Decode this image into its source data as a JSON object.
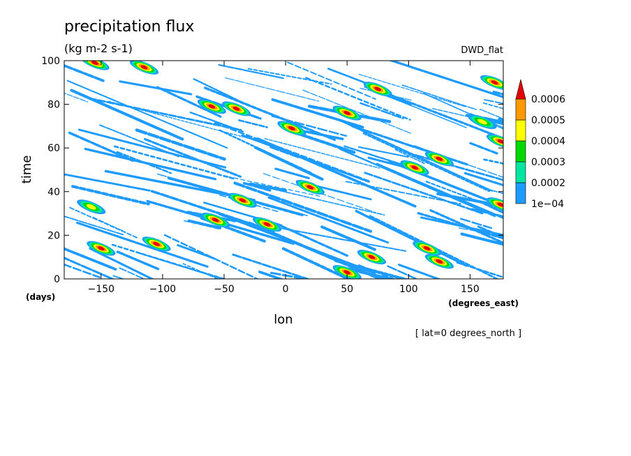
{
  "chart_data": {
    "type": "heatmap",
    "title": "precipitation flux",
    "units": "(kg m-2 s-1)",
    "dataset": "DWD_flat",
    "xlabel": "lon",
    "ylabel": "time",
    "x_units": "(degrees_east)",
    "y_units": "(days)",
    "xlim": [
      -180,
      177
    ],
    "ylim": [
      0,
      100
    ],
    "x_ticks": [
      -150,
      -100,
      -50,
      0,
      50,
      100,
      150
    ],
    "x_tick_labels": [
      "−150",
      "−100",
      "−50",
      "0",
      "50",
      "100",
      "150"
    ],
    "y_ticks": [
      0,
      20,
      40,
      60,
      80,
      100
    ],
    "y_tick_labels": [
      "0",
      "20",
      "40",
      "60",
      "80",
      "100"
    ],
    "footnote": "[ lat=0 degrees_north ]",
    "grid": false,
    "colorbar": {
      "placement": "right",
      "levels": [
        0.0001,
        0.0002,
        0.0003,
        0.0004,
        0.0005,
        0.0006
      ],
      "labels": [
        "1e−04",
        "0.0002",
        "0.0003",
        "0.0004",
        "0.0005",
        "0.0006"
      ],
      "colors": [
        "#1e9bff",
        "#00e6a0",
        "#00d800",
        "#ffff00",
        "#ff9900",
        "#e60000"
      ],
      "extend": "max"
    },
    "features": [
      {
        "lon": -150,
        "t": 14,
        "peak": 0.0006
      },
      {
        "lon": -105,
        "t": 16,
        "peak": 0.0006
      },
      {
        "lon": -158,
        "t": 33,
        "peak": 0.0004
      },
      {
        "lon": -57,
        "t": 27,
        "peak": 0.0006
      },
      {
        "lon": -35,
        "t": 36,
        "peak": 0.0006
      },
      {
        "lon": -15,
        "t": 25,
        "peak": 0.0006
      },
      {
        "lon": 20,
        "t": 42,
        "peak": 0.0006
      },
      {
        "lon": 50,
        "t": 3,
        "peak": 0.0006
      },
      {
        "lon": 70,
        "t": 10,
        "peak": 0.0006
      },
      {
        "lon": 115,
        "t": 14,
        "peak": 0.0006
      },
      {
        "lon": 125,
        "t": 8,
        "peak": 0.0006
      },
      {
        "lon": 105,
        "t": 51,
        "peak": 0.0006
      },
      {
        "lon": 125,
        "t": 55,
        "peak": 0.0006
      },
      {
        "lon": 50,
        "t": 76,
        "peak": 0.0006
      },
      {
        "lon": 75,
        "t": 87,
        "peak": 0.0006
      },
      {
        "lon": 160,
        "t": 72,
        "peak": 0.0004
      },
      {
        "lon": -115,
        "t": 97,
        "peak": 0.0006
      },
      {
        "lon": -60,
        "t": 79,
        "peak": 0.0006
      },
      {
        "lon": -40,
        "t": 78,
        "peak": 0.0006
      },
      {
        "lon": 5,
        "t": 69,
        "peak": 0.0006
      },
      {
        "lon": 175,
        "t": 34,
        "peak": 0.0006
      },
      {
        "lon": 175,
        "t": 63,
        "peak": 0.0006
      },
      {
        "lon": 170,
        "t": 90,
        "peak": 0.0006
      },
      {
        "lon": -155,
        "t": 99,
        "peak": 0.0006
      }
    ]
  }
}
